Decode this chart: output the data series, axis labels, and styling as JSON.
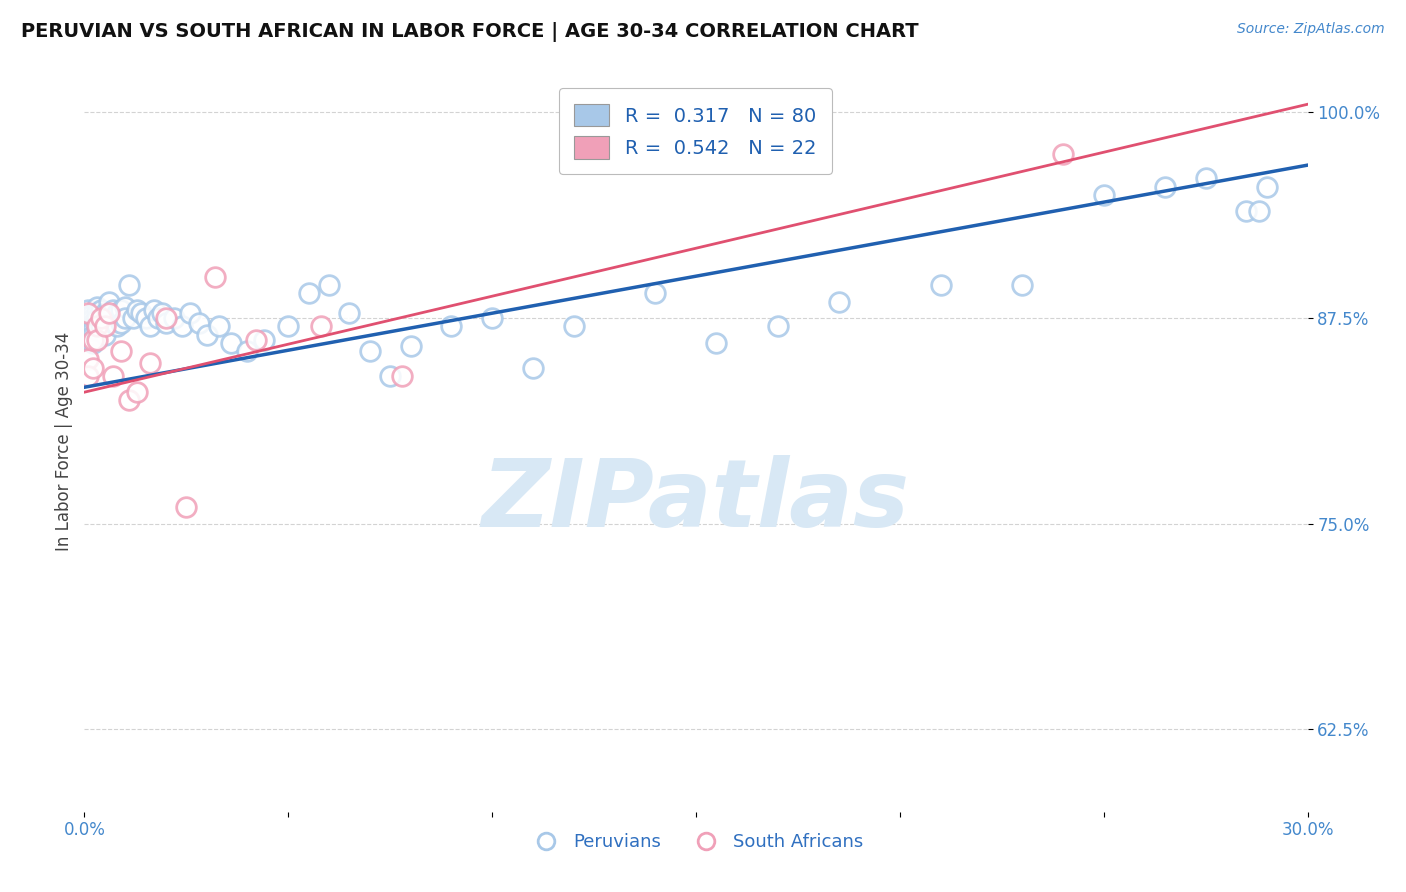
{
  "title": "PERUVIAN VS SOUTH AFRICAN IN LABOR FORCE | AGE 30-34 CORRELATION CHART",
  "source_text": "Source: ZipAtlas.com",
  "ylabel": "In Labor Force | Age 30-34",
  "xlim": [
    0.0,
    0.3
  ],
  "ylim": [
    0.575,
    1.025
  ],
  "yticks": [
    0.625,
    0.75,
    0.875,
    1.0
  ],
  "ytick_labels": [
    "62.5%",
    "75.0%",
    "87.5%",
    "100.0%"
  ],
  "xticks": [
    0.0,
    0.05,
    0.1,
    0.15,
    0.2,
    0.25,
    0.3
  ],
  "xtick_labels": [
    "0.0%",
    "",
    "",
    "",
    "",
    "",
    "30.0%"
  ],
  "blue_R": 0.317,
  "blue_N": 80,
  "pink_R": 0.542,
  "pink_N": 22,
  "blue_color": "#A8C8E8",
  "pink_color": "#F0A0B8",
  "blue_line_color": "#2060B0",
  "pink_line_color": "#E05070",
  "legend_text_color": "#2060B0",
  "axis_label_color": "#3070C0",
  "tick_label_color": "#4488CC",
  "grid_color": "#C8C8C8",
  "background_color": "#FFFFFF",
  "watermark_color": "#D8E8F5",
  "blue_x": [
    0.001,
    0.001,
    0.001,
    0.001,
    0.001,
    0.001,
    0.001,
    0.001,
    0.002,
    0.002,
    0.002,
    0.002,
    0.002,
    0.002,
    0.002,
    0.002,
    0.003,
    0.003,
    0.003,
    0.003,
    0.003,
    0.004,
    0.004,
    0.004,
    0.005,
    0.005,
    0.005,
    0.005,
    0.006,
    0.006,
    0.007,
    0.007,
    0.008,
    0.008,
    0.009,
    0.009,
    0.01,
    0.01,
    0.011,
    0.012,
    0.013,
    0.014,
    0.015,
    0.016,
    0.017,
    0.018,
    0.019,
    0.02,
    0.022,
    0.024,
    0.026,
    0.028,
    0.03,
    0.033,
    0.036,
    0.04,
    0.044,
    0.05,
    0.055,
    0.06,
    0.065,
    0.07,
    0.075,
    0.08,
    0.09,
    0.1,
    0.11,
    0.12,
    0.14,
    0.155,
    0.17,
    0.185,
    0.21,
    0.23,
    0.25,
    0.265,
    0.275,
    0.285,
    0.288,
    0.29
  ],
  "blue_y": [
    0.88,
    0.876,
    0.872,
    0.875,
    0.87,
    0.868,
    0.864,
    0.862,
    0.878,
    0.875,
    0.872,
    0.87,
    0.868,
    0.865,
    0.862,
    0.86,
    0.882,
    0.878,
    0.875,
    0.87,
    0.868,
    0.88,
    0.875,
    0.87,
    0.878,
    0.875,
    0.87,
    0.865,
    0.885,
    0.875,
    0.88,
    0.872,
    0.878,
    0.87,
    0.88,
    0.872,
    0.882,
    0.875,
    0.895,
    0.875,
    0.88,
    0.878,
    0.875,
    0.87,
    0.88,
    0.875,
    0.878,
    0.872,
    0.875,
    0.87,
    0.878,
    0.872,
    0.865,
    0.87,
    0.86,
    0.855,
    0.862,
    0.87,
    0.89,
    0.895,
    0.878,
    0.855,
    0.84,
    0.858,
    0.87,
    0.875,
    0.845,
    0.87,
    0.89,
    0.86,
    0.87,
    0.885,
    0.895,
    0.895,
    0.95,
    0.955,
    0.96,
    0.94,
    0.94,
    0.955
  ],
  "pink_x": [
    0.001,
    0.001,
    0.001,
    0.002,
    0.002,
    0.003,
    0.003,
    0.004,
    0.005,
    0.006,
    0.007,
    0.009,
    0.011,
    0.013,
    0.016,
    0.02,
    0.025,
    0.032,
    0.042,
    0.058,
    0.078,
    0.24
  ],
  "pink_y": [
    0.878,
    0.85,
    0.84,
    0.862,
    0.845,
    0.87,
    0.862,
    0.875,
    0.87,
    0.878,
    0.84,
    0.855,
    0.825,
    0.83,
    0.848,
    0.875,
    0.76,
    0.9,
    0.862,
    0.87,
    0.84,
    0.975
  ],
  "blue_line_x0": 0.0,
  "blue_line_y0": 0.833,
  "blue_line_x1": 0.3,
  "blue_line_y1": 0.968,
  "pink_line_x0": 0.0,
  "pink_line_y0": 0.83,
  "pink_line_x1": 0.3,
  "pink_line_y1": 1.005
}
